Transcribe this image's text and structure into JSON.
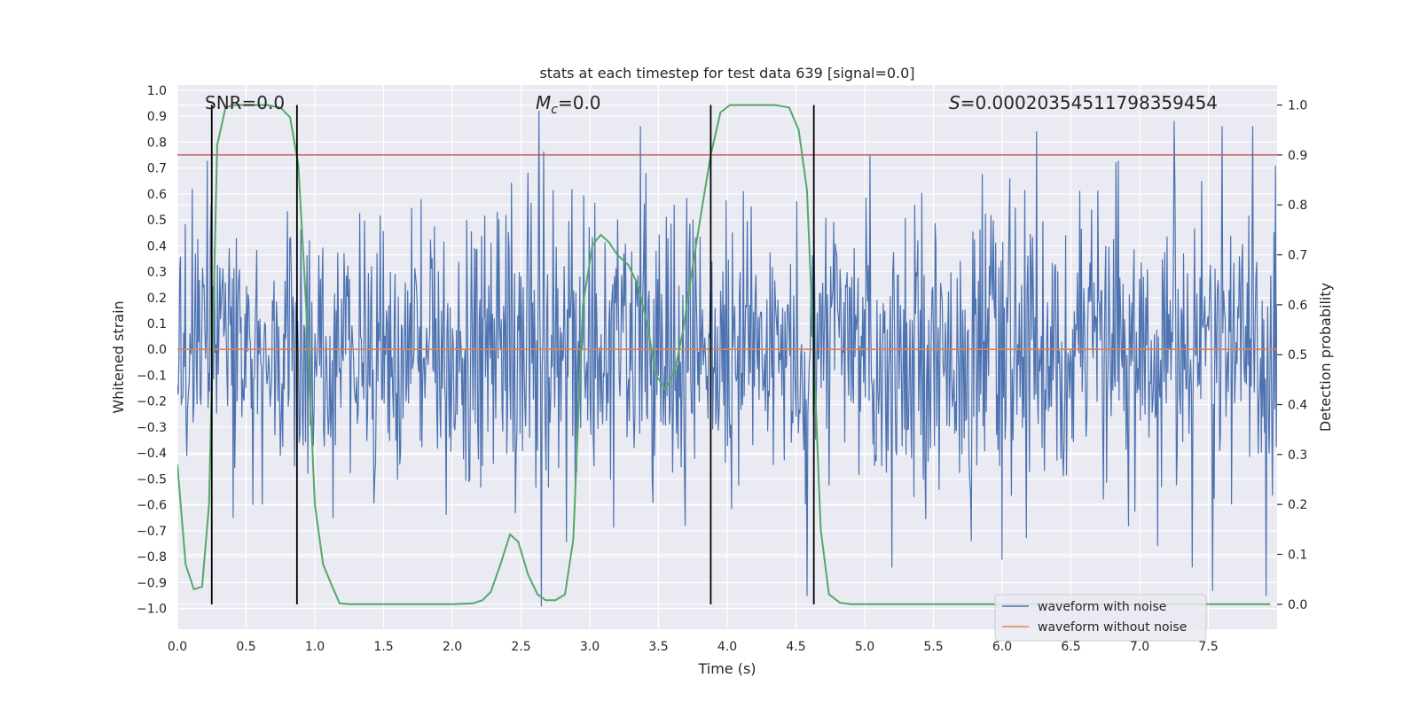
{
  "chart_data": {
    "type": "line",
    "title": "stats at each timestep for test data 639 [signal=0.0]",
    "xlabel": "Time (s)",
    "ylabel_left": "Whitened strain",
    "ylabel_right": "Detection probability",
    "xlim": [
      0.0,
      8.0
    ],
    "ylim_left": [
      -1.08,
      1.02
    ],
    "ylim_right": [
      -0.05,
      1.04
    ],
    "x_ticks": [
      0.0,
      0.5,
      1.0,
      1.5,
      2.0,
      2.5,
      3.0,
      3.5,
      4.0,
      4.5,
      5.0,
      5.5,
      6.0,
      6.5,
      7.0,
      7.5
    ],
    "x_tick_labels": [
      "0.0",
      "0.5",
      "1.0",
      "1.5",
      "2.0",
      "2.5",
      "3.0",
      "3.5",
      "4.0",
      "4.5",
      "5.0",
      "5.5",
      "6.0",
      "6.5",
      "7.0",
      "7.5"
    ],
    "y_left_ticks": [
      1.0,
      0.9,
      0.8,
      0.7,
      0.6,
      0.5,
      0.4,
      0.3,
      0.2,
      0.1,
      0.0,
      -0.1,
      -0.2,
      -0.3,
      -0.4,
      -0.5,
      -0.6,
      -0.7,
      -0.8,
      -0.9,
      -1.0
    ],
    "y_left_tick_labels": [
      "1.0",
      "0.9",
      "0.8",
      "0.7",
      "0.6",
      "0.5",
      "0.4",
      "0.3",
      "0.2",
      "0.1",
      "0.0",
      "−0.1",
      "−0.2",
      "−0.3",
      "−0.4",
      "−0.5",
      "−0.6",
      "−0.7",
      "−0.8",
      "−0.9",
      "−1.0"
    ],
    "y_right_ticks": [
      1.0,
      0.9,
      0.8,
      0.7,
      0.6,
      0.5,
      0.4,
      0.3,
      0.2,
      0.1,
      0.0
    ],
    "y_right_tick_labels": [
      "1.0",
      "0.9",
      "0.8",
      "0.7",
      "0.6",
      "0.5",
      "0.4",
      "0.3",
      "0.2",
      "0.1",
      "0.0"
    ],
    "annotations": {
      "snr": "SNR=0.0",
      "mc_symbol": "M",
      "mc_sub": "c",
      "mc_value": "=0.0",
      "s_symbol": "S",
      "s_value": "=0.00020354511798359454"
    },
    "series": [
      {
        "name": "waveform with noise",
        "color": "#4c72b0",
        "description": "dense whitened strain noise, amplitude mostly within [-0.6, 0.6], peaks up to about 0.92 and down to about -1.0",
        "seed": 639,
        "n_points": 1400,
        "typical_amplitude": 0.26,
        "spikes": [
          {
            "x": 2.63,
            "y": 0.92
          },
          {
            "x": 7.25,
            "y": 0.88
          },
          {
            "x": 6.25,
            "y": 0.84
          },
          {
            "x": 2.65,
            "y": -0.99
          },
          {
            "x": 7.53,
            "y": -0.93
          },
          {
            "x": 7.38,
            "y": -0.84
          },
          {
            "x": 6.0,
            "y": -0.81
          }
        ]
      },
      {
        "name": "waveform without noise",
        "color": "#dd8452",
        "x": [
          0.0,
          8.0
        ],
        "y": [
          0.0,
          0.0
        ]
      },
      {
        "name": "detection probability",
        "color": "#55a868",
        "axis": "right",
        "x": [
          0.0,
          0.06,
          0.12,
          0.18,
          0.23,
          0.29,
          0.35,
          0.41,
          0.48,
          0.55,
          0.65,
          0.75,
          0.82,
          0.88,
          0.94,
          1.0,
          1.06,
          1.12,
          1.18,
          1.25,
          1.4,
          1.6,
          1.8,
          2.0,
          2.15,
          2.22,
          2.28,
          2.35,
          2.42,
          2.48,
          2.55,
          2.62,
          2.68,
          2.75,
          2.82,
          2.88,
          2.95,
          3.02,
          3.08,
          3.14,
          3.2,
          3.28,
          3.35,
          3.42,
          3.48,
          3.55,
          3.62,
          3.68,
          3.75,
          3.82,
          3.88,
          3.95,
          4.02,
          4.1,
          4.2,
          4.35,
          4.45,
          4.52,
          4.58,
          4.63,
          4.68,
          4.74,
          4.82,
          4.9,
          5.2,
          6.0,
          7.0,
          7.95
        ],
        "y": [
          0.28,
          0.08,
          0.03,
          0.035,
          0.2,
          0.92,
          0.995,
          1.0,
          1.0,
          1.0,
          1.0,
          0.995,
          0.975,
          0.88,
          0.58,
          0.2,
          0.08,
          0.04,
          0.002,
          0.0,
          0.0,
          0.0,
          0.0,
          0.0,
          0.002,
          0.008,
          0.025,
          0.08,
          0.14,
          0.125,
          0.06,
          0.02,
          0.008,
          0.008,
          0.02,
          0.13,
          0.6,
          0.72,
          0.74,
          0.725,
          0.7,
          0.68,
          0.64,
          0.56,
          0.46,
          0.43,
          0.47,
          0.55,
          0.68,
          0.8,
          0.9,
          0.985,
          1.0,
          1.0,
          1.0,
          1.0,
          0.995,
          0.95,
          0.83,
          0.5,
          0.15,
          0.02,
          0.003,
          0.0,
          0.0,
          0.0,
          0.0,
          0.0
        ]
      }
    ],
    "threshold_line": {
      "color": "#c44e52",
      "y_right": 0.9
    },
    "vertical_markers_x": [
      0.25,
      0.87,
      3.88,
      4.63
    ],
    "vertical_markers_color": "#000000",
    "legend": {
      "location": "lower right",
      "entries": [
        "waveform with noise",
        "waveform without noise"
      ]
    },
    "grid": true,
    "background": "#eaeaf2"
  }
}
